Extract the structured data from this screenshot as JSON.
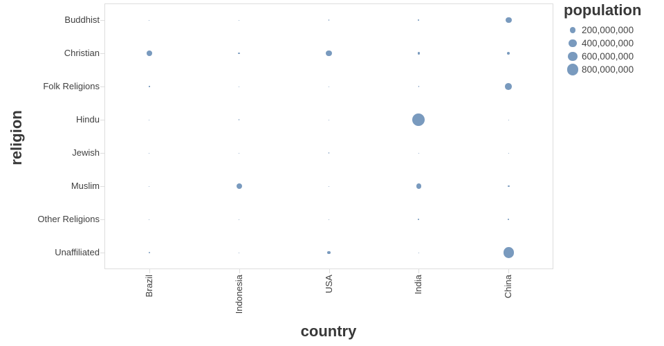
{
  "chart_data": {
    "type": "scatter",
    "subtype": "bubble",
    "title": "",
    "xlabel": "country",
    "ylabel": "religion",
    "x_field": "country",
    "y_field": "religion",
    "size_field": "population",
    "categories_x": [
      "Brazil",
      "Indonesia",
      "USA",
      "India",
      "China"
    ],
    "categories_y": [
      "Buddhist",
      "Christian",
      "Folk Religions",
      "Hindu",
      "Jewish",
      "Muslim",
      "Other Religions",
      "Unaffiliated"
    ],
    "grid": false,
    "legend_position": "top-right",
    "marker_color": "#4c78a8",
    "marker_opacity": 0.75,
    "axis_line_color": "#dddddd",
    "label_color": "#404040",
    "title_color": "#383838",
    "legend": {
      "title": "population",
      "entries": [
        {
          "label": "200,000,000",
          "value": 200000000
        },
        {
          "label": "400,000,000",
          "value": 400000000
        },
        {
          "label": "600,000,000",
          "value": 600000000
        },
        {
          "label": "800,000,000",
          "value": 800000000
        }
      ]
    },
    "points": [
      {
        "country": "Brazil",
        "religion": "Buddhist",
        "population": 250000
      },
      {
        "country": "Brazil",
        "religion": "Christian",
        "population": 173300000
      },
      {
        "country": "Brazil",
        "religion": "Folk Religions",
        "population": 5540000
      },
      {
        "country": "Brazil",
        "religion": "Hindu",
        "population": 10000
      },
      {
        "country": "Brazil",
        "religion": "Jewish",
        "population": 490000
      },
      {
        "country": "Brazil",
        "religion": "Muslim",
        "population": 40000
      },
      {
        "country": "Brazil",
        "religion": "Other Religions",
        "population": 1550000
      },
      {
        "country": "Brazil",
        "religion": "Unaffiliated",
        "population": 15410000
      },
      {
        "country": "Indonesia",
        "religion": "Buddhist",
        "population": 1720000
      },
      {
        "country": "Indonesia",
        "religion": "Christian",
        "population": 23660000
      },
      {
        "country": "Indonesia",
        "religion": "Folk Religions",
        "population": 720000
      },
      {
        "country": "Indonesia",
        "religion": "Hindu",
        "population": 4050000
      },
      {
        "country": "Indonesia",
        "religion": "Jewish",
        "population": 10000
      },
      {
        "country": "Indonesia",
        "religion": "Muslim",
        "population": 209120000
      },
      {
        "country": "Indonesia",
        "religion": "Other Religions",
        "population": 240000
      },
      {
        "country": "Indonesia",
        "religion": "Unaffiliated",
        "population": 240000
      },
      {
        "country": "USA",
        "religion": "Buddhist",
        "population": 3570000
      },
      {
        "country": "USA",
        "religion": "Christian",
        "population": 243060000
      },
      {
        "country": "USA",
        "religion": "Folk Religions",
        "population": 630000
      },
      {
        "country": "USA",
        "religion": "Hindu",
        "population": 1790000
      },
      {
        "country": "USA",
        "religion": "Jewish",
        "population": 5690000
      },
      {
        "country": "USA",
        "religion": "Muslim",
        "population": 2770000
      },
      {
        "country": "USA",
        "religion": "Other Religions",
        "population": 1900000
      },
      {
        "country": "USA",
        "religion": "Unaffiliated",
        "population": 50980000
      },
      {
        "country": "India",
        "religion": "Buddhist",
        "population": 9250000
      },
      {
        "country": "India",
        "religion": "Christian",
        "population": 31130000
      },
      {
        "country": "India",
        "religion": "Folk Religions",
        "population": 5840000
      },
      {
        "country": "India",
        "religion": "Hindu",
        "population": 973750000
      },
      {
        "country": "India",
        "religion": "Jewish",
        "population": 10000
      },
      {
        "country": "India",
        "religion": "Muslim",
        "population": 176190000
      },
      {
        "country": "India",
        "religion": "Other Religions",
        "population": 8790000
      },
      {
        "country": "India",
        "religion": "Unaffiliated",
        "population": 870000
      },
      {
        "country": "China",
        "religion": "Buddhist",
        "population": 244130000
      },
      {
        "country": "China",
        "religion": "Christian",
        "population": 68410000
      },
      {
        "country": "China",
        "religion": "Folk Religions",
        "population": 294320000
      },
      {
        "country": "China",
        "religion": "Hindu",
        "population": 20000
      },
      {
        "country": "China",
        "religion": "Jewish",
        "population": 10000
      },
      {
        "country": "China",
        "religion": "Muslim",
        "population": 24690000
      },
      {
        "country": "China",
        "religion": "Other Religions",
        "population": 9620000
      },
      {
        "country": "China",
        "religion": "Unaffiliated",
        "population": 700680000
      }
    ]
  }
}
